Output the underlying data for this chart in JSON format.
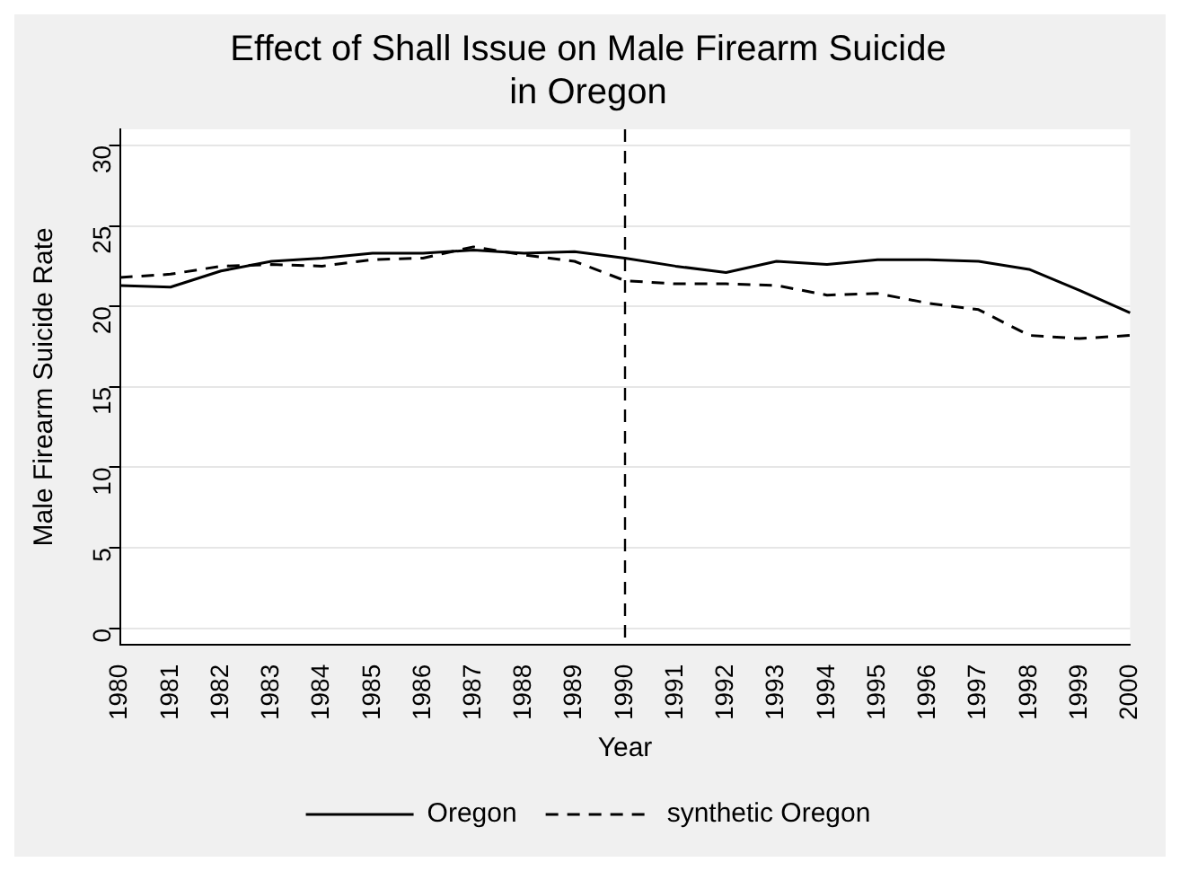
{
  "chart_data": {
    "type": "line",
    "title": "Effect of Shall Issue on Male Firearm Suicide\nin Oregon",
    "xlabel": "Year",
    "ylabel": "Male Firearm Suicide Rate",
    "categories": [
      "1980",
      "1981",
      "1982",
      "1983",
      "1984",
      "1985",
      "1986",
      "1987",
      "1988",
      "1989",
      "1990",
      "1991",
      "1992",
      "1993",
      "1994",
      "1995",
      "1996",
      "1997",
      "1998",
      "1999",
      "2000"
    ],
    "series": [
      {
        "name": "Oregon",
        "color": "#000000",
        "line_style": "solid",
        "values": [
          21.3,
          21.2,
          22.2,
          22.8,
          23.0,
          23.3,
          23.3,
          23.5,
          23.3,
          23.4,
          23.0,
          22.5,
          22.1,
          22.8,
          22.6,
          22.9,
          22.9,
          22.8,
          22.3,
          21.0,
          19.6
        ]
      },
      {
        "name": "synthetic Oregon",
        "color": "#000000",
        "line_style": "dashed",
        "values": [
          21.8,
          22.0,
          22.5,
          22.6,
          22.5,
          22.9,
          23.0,
          23.7,
          23.2,
          22.8,
          21.6,
          21.4,
          21.4,
          21.3,
          20.7,
          20.8,
          20.2,
          19.8,
          18.2,
          18.0,
          18.2
        ]
      }
    ],
    "ylim": [
      -1,
      31
    ],
    "yticks": [
      0,
      5,
      10,
      15,
      20,
      25,
      30
    ],
    "grid": "y",
    "legend": "bottom",
    "marker": "none",
    "ref_lines": [
      {
        "axis": "x",
        "value": "1990",
        "color": "#000000",
        "line_style": "dashed"
      }
    ]
  }
}
